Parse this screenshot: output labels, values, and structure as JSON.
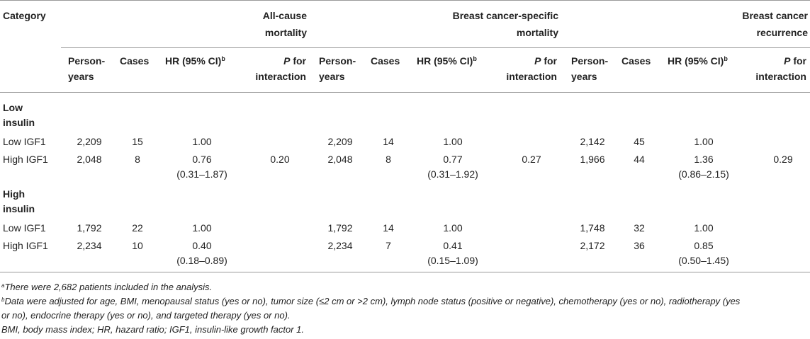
{
  "header": {
    "category": "Category",
    "groups": [
      {
        "line1": "All-cause",
        "line2": "mortality"
      },
      {
        "line1": "Breast cancer-specific",
        "line2": "mortality"
      },
      {
        "line1": "Breast cancer",
        "line2": "recurrence"
      }
    ],
    "sub": {
      "person_1": "Person-",
      "person_2": "years",
      "cases": "Cases",
      "hr": "HR (95% CI)",
      "hr_sup": "b",
      "p_1": "P",
      "p_1_rest": " for",
      "p_2": "interaction"
    }
  },
  "sections": [
    {
      "title_1": "Low",
      "title_2": "insulin",
      "rows": [
        {
          "label": "Low IGF1",
          "cells": [
            {
              "py": "2,209",
              "cases": "15",
              "hr": "1.00",
              "ci": "",
              "p": ""
            },
            {
              "py": "2,209",
              "cases": "14",
              "hr": "1.00",
              "ci": "",
              "p": ""
            },
            {
              "py": "2,142",
              "cases": "45",
              "hr": "1.00",
              "ci": "",
              "p": ""
            }
          ]
        },
        {
          "label": "High IGF1",
          "cells": [
            {
              "py": "2,048",
              "cases": "8",
              "hr": "0.76",
              "ci": "(0.31–1.87)",
              "p": "0.20"
            },
            {
              "py": "2,048",
              "cases": "8",
              "hr": "0.77",
              "ci": "(0.31–1.92)",
              "p": "0.27"
            },
            {
              "py": "1,966",
              "cases": "44",
              "hr": "1.36",
              "ci": "(0.86–2.15)",
              "p": "0.29"
            }
          ]
        }
      ]
    },
    {
      "title_1": "High",
      "title_2": "insulin",
      "rows": [
        {
          "label": "Low IGF1",
          "cells": [
            {
              "py": "1,792",
              "cases": "22",
              "hr": "1.00",
              "ci": "",
              "p": ""
            },
            {
              "py": "1,792",
              "cases": "14",
              "hr": "1.00",
              "ci": "",
              "p": ""
            },
            {
              "py": "1,748",
              "cases": "32",
              "hr": "1.00",
              "ci": "",
              "p": ""
            }
          ]
        },
        {
          "label": "High IGF1",
          "cells": [
            {
              "py": "2,234",
              "cases": "10",
              "hr": "0.40",
              "ci": "(0.18–0.89)",
              "p": ""
            },
            {
              "py": "2,234",
              "cases": "7",
              "hr": "0.41",
              "ci": "(0.15–1.09)",
              "p": ""
            },
            {
              "py": "2,172",
              "cases": "36",
              "hr": "0.85",
              "ci": "(0.50–1.45)",
              "p": ""
            }
          ]
        }
      ]
    }
  ],
  "footnotes": {
    "a_mark": "a",
    "a_text": "There were 2,682 patients included in the analysis.",
    "b_mark": "b",
    "b_text_1": "Data were adjusted for age, BMI, menopausal status (yes or no), tumor size (≤2 cm or >2 cm), lymph node status (positive or negative), chemotherapy (yes or no), radiotherapy (yes",
    "b_text_2": "or no), endocrine therapy (yes or no), and targeted therapy (yes or no).",
    "abbrev": "BMI, body mass index; HR, hazard ratio; IGF1, insulin-like growth factor 1."
  }
}
